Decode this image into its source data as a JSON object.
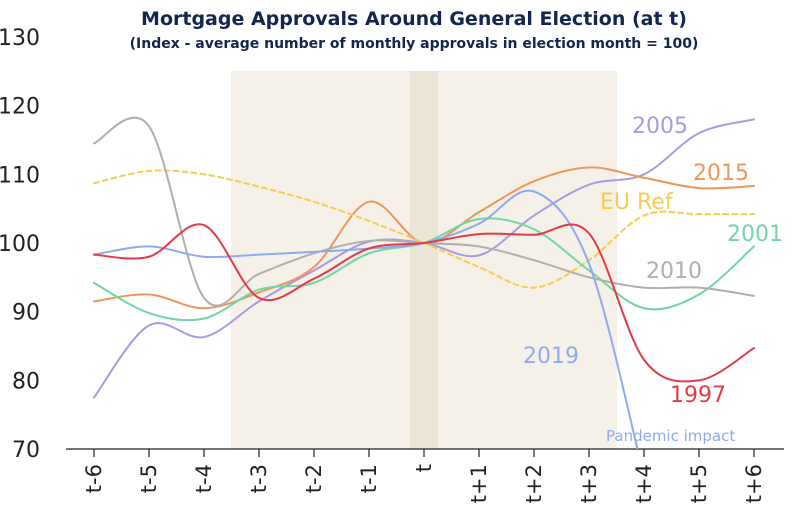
{
  "chart_data": {
    "type": "line",
    "title": "Mortgage Approvals Around General Election (at t)",
    "subtitle": "(Index - average number of monthly approvals in election month = 100)",
    "xlabel": "",
    "ylabel": "",
    "categories": [
      "t-6",
      "t-5",
      "t-4",
      "t-3",
      "t-2",
      "t-1",
      "t",
      "t+1",
      "t+2",
      "t+3",
      "t+4",
      "t+5",
      "t+6"
    ],
    "ylim": [
      70,
      130
    ],
    "yticks": [
      70,
      80,
      90,
      100,
      110,
      120,
      130
    ],
    "grid": false,
    "legend": "inline labels at line ends",
    "shaded_regions": [
      {
        "from": "t-3",
        "to": "t+3",
        "color": "#f6f1e8"
      },
      {
        "from": "t",
        "to": "t",
        "color": "#ece6d9"
      }
    ],
    "series": [
      {
        "name": "2005",
        "color": "#a99ae3",
        "dashed": false,
        "values": [
          77.5,
          88,
          86.3,
          91.5,
          96,
          100.2,
          100,
          98.2,
          104,
          108.5,
          110,
          116,
          118
        ]
      },
      {
        "name": "2015",
        "color": "#f0955a",
        "dashed": false,
        "values": [
          91.5,
          92.5,
          90.5,
          92.8,
          96.5,
          106,
          100,
          104.5,
          109,
          111,
          109.5,
          108,
          108.3
        ]
      },
      {
        "name": "EU Ref",
        "color": "#f5cd50",
        "dashed": true,
        "values": [
          108.7,
          110.5,
          110,
          108.2,
          106,
          103.2,
          100,
          96.5,
          93.5,
          97.5,
          104,
          104.2,
          104.2
        ]
      },
      {
        "name": "2001",
        "color": "#72d6a4",
        "dashed": false,
        "values": [
          94.2,
          89.8,
          89,
          93.2,
          94.2,
          98.5,
          100,
          103.5,
          102,
          96,
          90.5,
          92.5,
          99.5
        ]
      },
      {
        "name": "2010",
        "color": "#b2aeab",
        "dashed": false,
        "values": [
          114.5,
          117,
          92,
          95.5,
          98.5,
          100.3,
          100,
          99.5,
          97.5,
          95,
          93.5,
          93.5,
          92.3
        ]
      },
      {
        "name": "2019",
        "color": "#8eaaf0",
        "dashed": false,
        "values": [
          98.3,
          99.5,
          98,
          98.3,
          98.7,
          99.2,
          100,
          102.8,
          107.5,
          97,
          66,
          66,
          66
        ],
        "clip_after": "t+3"
      },
      {
        "name": "1997",
        "color": "#e43a48",
        "dashed": false,
        "values": [
          98.3,
          98,
          102.6,
          92,
          94.8,
          99.2,
          100,
          101.3,
          101.2,
          101.4,
          83,
          80,
          84.7
        ]
      }
    ],
    "annotations": [
      "Pandemic impact"
    ]
  }
}
